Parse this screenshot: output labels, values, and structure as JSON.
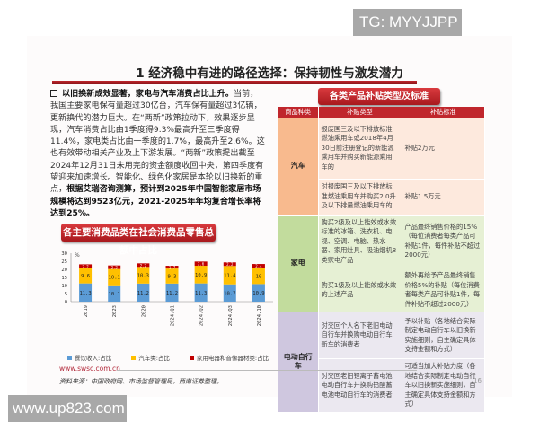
{
  "watermarks": {
    "tg": "TG: MYYJJPP",
    "site": "www.up823.com"
  },
  "title": "1 经济稳中有进的路径选择：保持韧性与激发潜力",
  "paragraph": {
    "lead": "以旧换新成效显著，家电与汽车消费占比上升。",
    "body": "当前，我国主要家电保有量超过30亿台，汽车保有量超过3亿辆，更新换代的潜力巨大。在“两新”政策拉动下，效果逐步显现，汽车消费占比由1季度得9.3%最高升至三季度得11.4%，家电类占比由一季度的1.7%，最高升至2.6%。这也有效带动相关产业及上下游发展。“两新”政策提出截至2024年12月31日未用完的资金额度收回中央，第四季度有望迎来加速增长。智能化、绿色化家居是本轮以旧换新的重点，",
    "bold_end": "根据艾瑞咨询测算，预计到2025年中国智能家居市场规模将达到9523亿元，2021-2025年年均复合增长率将达到25%。"
  },
  "chart_banner": "各主要消费品类在社会消费品零售总额中占比",
  "chart_data": {
    "type": "bar",
    "stacked": true,
    "title": "各主要消费品类在社会消费品零售总额中占比",
    "ylabel": "%",
    "ylim": [
      0,
      30
    ],
    "yticks": [
      0,
      5,
      10,
      15,
      20,
      25,
      30
    ],
    "categories": [
      "2019",
      "2023",
      "2020",
      "2024.Q1",
      "2024.Q2",
      "2024.Q3",
      "2024.10"
    ],
    "series": [
      {
        "name": "餐饮收入:占比",
        "color": "#5b9bd5",
        "values": [
          11.3,
          10.1,
          11.2,
          11.2,
          11.3,
          10.7,
          10.9
        ]
      },
      {
        "name": "汽车类:占比",
        "color": "#ffc000",
        "values": [
          9.6,
          10.1,
          10.3,
          9.3,
          10.9,
          11.4,
          10.0
        ]
      },
      {
        "name": "家用电器和音像器材类:占比",
        "color": "#c00000",
        "values": [
          2.2,
          2.2,
          2.2,
          1.7,
          2.6,
          2.2,
          2.4
        ]
      }
    ],
    "legend": "bottom",
    "grid": false
  },
  "table": {
    "banner": "各类产品补贴类型及标准",
    "headers": [
      "商品种类",
      "补贴类型",
      "补贴标准"
    ],
    "groups": [
      {
        "category": "汽车",
        "rows": [
          [
            "报废国三及以下排放标准燃油乘用车或2018年4月30日前注册登记的新能源乘用车并购买新能源乘用车的",
            "补贴2万元"
          ],
          [
            "对报废国三及以下排放标准燃油乘用车并购买2.0升及以下排量燃油乘用车的",
            "补贴1.5万元"
          ]
        ]
      },
      {
        "category": "家电",
        "rows": [
          [
            "购买2级及以上能效或水效标准的冰箱、洗衣机、电视、空调、电脑、热水器、家用灶具、吸油烟机8类家电产品",
            "产品最终销售价格的15%（每位消费者每类产品可补贴1件，每件补贴不超过2000元）"
          ],
          [
            "购买1级及以上能效或水效的上述产品",
            "额外再给予产品最终销售价格5%的补贴（每位消费者每类产品可补贴1件，每件补贴不超过2000元）"
          ]
        ]
      },
      {
        "category": "电动自行车",
        "rows": [
          [
            "对交回个人名下老旧电动自行车并换购电动自行车新车的消费者",
            "予以补贴（各地结合实际制定电动自行车以旧换新实施细则，自主确定具体支持金额和方式）"
          ],
          [
            "对交回老旧锂离子蓄电池电动自行车并换购铅酸蓄电池电动自行车的消费者",
            "可适当加大补贴力度（各地结合实际制定电动自行车以旧换新实施细则，自主确定具体支持金额和方式）"
          ]
        ]
      }
    ]
  },
  "footer": {
    "url": "www.swsc.com.cn",
    "source": "资料来源：中国政府网、市场监督管理局，西南证券整理。",
    "page": "16"
  }
}
